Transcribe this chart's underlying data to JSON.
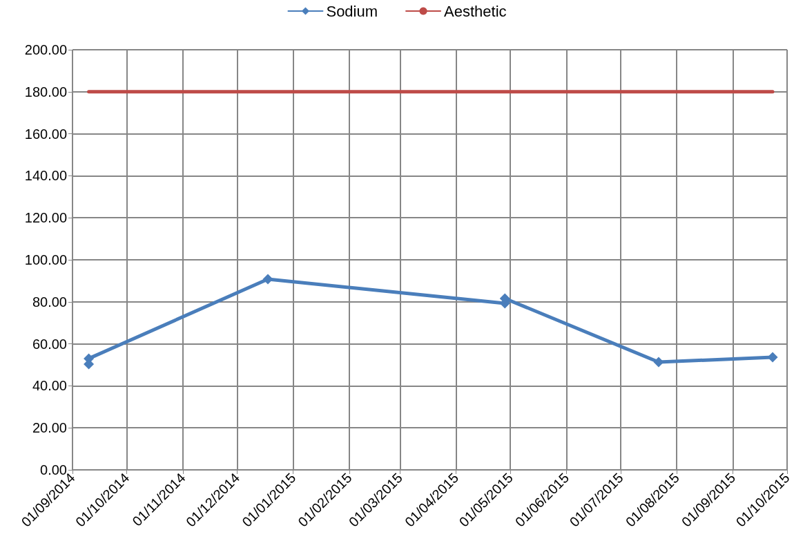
{
  "chart_data": {
    "type": "line",
    "x": [
      "2014-09-10",
      "2014-09-10",
      "2014-12-18",
      "2015-04-28",
      "2015-04-28",
      "2015-07-22",
      "2015-09-23"
    ],
    "series": [
      {
        "name": "Sodium",
        "color": "#4a7ebb",
        "marker": "diamond",
        "values": [
          50.3,
          53,
          90.8,
          79.3,
          81.6,
          51.3,
          53.6
        ]
      },
      {
        "name": "Aesthetic",
        "color": "#be4b48",
        "marker": "none",
        "x": [
          "2014-09-10",
          "2015-09-23"
        ],
        "values": [
          180,
          180
        ]
      }
    ],
    "xlim": [
      "2014-09-01",
      "2015-10-01"
    ],
    "xticks": [
      {
        "value": "2014-09-01",
        "label": "01/09/2014"
      },
      {
        "value": "2014-10-01",
        "label": "01/10/2014"
      },
      {
        "value": "2014-11-01",
        "label": "01/11/2014"
      },
      {
        "value": "2014-12-01",
        "label": "01/12/2014"
      },
      {
        "value": "2015-01-01",
        "label": "01/01/2015"
      },
      {
        "value": "2015-02-01",
        "label": "01/02/2015"
      },
      {
        "value": "2015-03-01",
        "label": "01/03/2015"
      },
      {
        "value": "2015-04-01",
        "label": "01/04/2015"
      },
      {
        "value": "2015-05-01",
        "label": "01/05/2015"
      },
      {
        "value": "2015-06-01",
        "label": "01/06/2015"
      },
      {
        "value": "2015-07-01",
        "label": "01/07/2015"
      },
      {
        "value": "2015-08-01",
        "label": "01/08/2015"
      },
      {
        "value": "2015-09-01",
        "label": "01/09/2015"
      },
      {
        "value": "2015-10-01",
        "label": "01/10/2015"
      }
    ],
    "ylim": [
      0,
      200
    ],
    "yticks": [
      {
        "value": 0,
        "label": "0.00"
      },
      {
        "value": 20,
        "label": "20.00"
      },
      {
        "value": 40,
        "label": "40.00"
      },
      {
        "value": 60,
        "label": "60.00"
      },
      {
        "value": 80,
        "label": "80.00"
      },
      {
        "value": 100,
        "label": "100.00"
      },
      {
        "value": 120,
        "label": "120.00"
      },
      {
        "value": 140,
        "label": "140.00"
      },
      {
        "value": 160,
        "label": "160.00"
      },
      {
        "value": 180,
        "label": "180.00"
      },
      {
        "value": 200,
        "label": "200.00"
      }
    ],
    "grid": true,
    "legend": "top",
    "line_style": "solid"
  }
}
